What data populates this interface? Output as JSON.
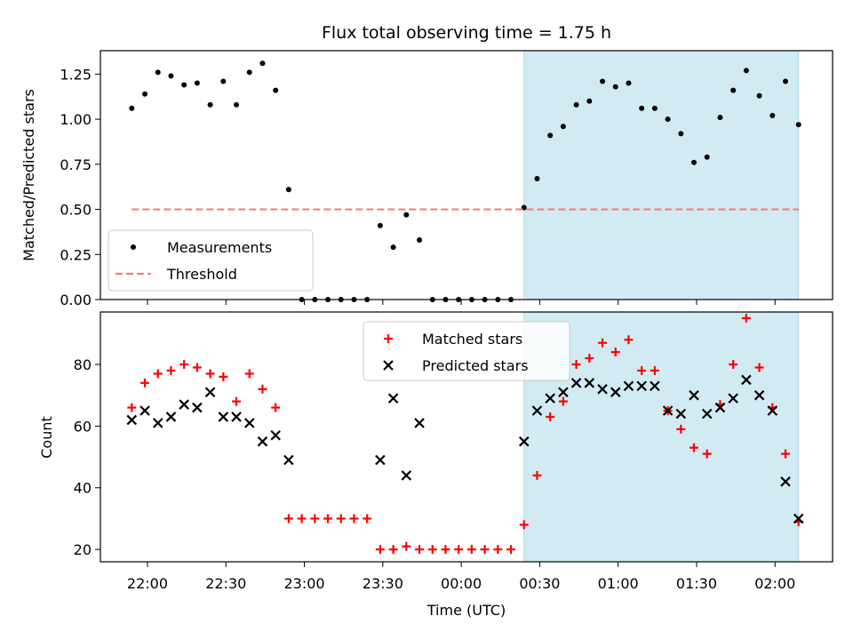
{
  "chart_data": {
    "title": "Flux total observing time = 1.75 h",
    "xlabel": "Time (UTC)",
    "x_ticks": [
      "22:00",
      "22:30",
      "23:00",
      "23:30",
      "00:00",
      "00:30",
      "01:00",
      "01:30",
      "02:00"
    ],
    "highlight_region": {
      "from": "00:24",
      "to": "02:09",
      "color": "#add8e6"
    },
    "top": {
      "type": "scatter",
      "ylabel": "Matched/Predicted stars",
      "ylim": [
        0,
        1.38
      ],
      "yticks": [
        "0.00",
        "0.25",
        "0.50",
        "0.75",
        "1.00",
        "1.25"
      ],
      "legend_position": "lower-left",
      "series": [
        {
          "name": "Measurements",
          "color": "#000000",
          "x": [
            "21:54",
            "21:59",
            "22:04",
            "22:09",
            "22:14",
            "22:19",
            "22:24",
            "22:29",
            "22:34",
            "22:39",
            "22:44",
            "22:49",
            "22:54",
            "22:59",
            "23:04",
            "23:09",
            "23:14",
            "23:19",
            "23:24",
            "23:29",
            "23:34",
            "23:39",
            "23:44",
            "23:49",
            "23:54",
            "23:59",
            "00:04",
            "00:09",
            "00:14",
            "00:19",
            "00:24",
            "00:29",
            "00:34",
            "00:39",
            "00:44",
            "00:49",
            "00:54",
            "00:59",
            "01:04",
            "01:09",
            "01:14",
            "01:19",
            "01:24",
            "01:29",
            "01:34",
            "01:39",
            "01:44",
            "01:49",
            "01:54",
            "01:59",
            "02:04",
            "02:09"
          ],
          "y": [
            1.06,
            1.14,
            1.26,
            1.24,
            1.19,
            1.2,
            1.08,
            1.21,
            1.08,
            1.26,
            1.31,
            1.16,
            0.61,
            0.0,
            0.0,
            0.0,
            0.0,
            0.0,
            0.0,
            0.41,
            0.29,
            0.47,
            0.33,
            0.0,
            0.0,
            0.0,
            0.0,
            0.0,
            0.0,
            0.0,
            0.51,
            0.67,
            0.91,
            0.96,
            1.08,
            1.1,
            1.21,
            1.18,
            1.2,
            1.06,
            1.06,
            1.0,
            0.92,
            0.76,
            0.79,
            1.01,
            1.16,
            1.27,
            1.13,
            1.02,
            1.21,
            0.97
          ]
        },
        {
          "name": "Threshold",
          "color": "#f08080",
          "style": "dashed",
          "x": [
            "21:54",
            "02:09"
          ],
          "y": [
            0.5,
            0.5
          ]
        }
      ]
    },
    "bottom": {
      "type": "scatter",
      "ylabel": "Count",
      "ylim": [
        16,
        97
      ],
      "yticks": [
        "20",
        "40",
        "60",
        "80"
      ],
      "legend_position": "top-center",
      "series": [
        {
          "name": "Matched stars",
          "marker": "plus",
          "color": "#ff0000",
          "x": [
            "21:54",
            "21:59",
            "22:04",
            "22:09",
            "22:14",
            "22:19",
            "22:24",
            "22:29",
            "22:34",
            "22:39",
            "22:44",
            "22:49",
            "22:54",
            "22:59",
            "23:04",
            "23:09",
            "23:14",
            "23:19",
            "23:24",
            "23:29",
            "23:34",
            "23:39",
            "23:44",
            "23:49",
            "23:54",
            "23:59",
            "00:04",
            "00:09",
            "00:14",
            "00:19",
            "00:24",
            "00:29",
            "00:34",
            "00:39",
            "00:44",
            "00:49",
            "00:54",
            "00:59",
            "01:04",
            "01:09",
            "01:14",
            "01:19",
            "01:24",
            "01:29",
            "01:34",
            "01:39",
            "01:44",
            "01:49",
            "01:54",
            "01:59",
            "02:04",
            "02:09"
          ],
          "y": [
            66,
            74,
            77,
            78,
            80,
            79,
            77,
            76,
            68,
            77,
            72,
            66,
            30,
            30,
            30,
            30,
            30,
            30,
            30,
            20,
            20,
            21,
            20,
            20,
            20,
            20,
            20,
            20,
            20,
            20,
            28,
            44,
            63,
            68,
            80,
            82,
            87,
            84,
            88,
            78,
            78,
            65,
            59,
            53,
            51,
            67,
            80,
            95,
            79,
            66,
            51,
            29
          ]
        },
        {
          "name": "Predicted stars",
          "marker": "x",
          "color": "#000000",
          "x": [
            "21:54",
            "21:59",
            "22:04",
            "22:09",
            "22:14",
            "22:19",
            "22:24",
            "22:29",
            "22:34",
            "22:39",
            "22:44",
            "22:49",
            "22:54",
            "23:29",
            "23:34",
            "23:39",
            "23:44",
            "00:24",
            "00:29",
            "00:34",
            "00:39",
            "00:44",
            "00:49",
            "00:54",
            "00:59",
            "01:04",
            "01:09",
            "01:14",
            "01:19",
            "01:24",
            "01:29",
            "01:34",
            "01:39",
            "01:44",
            "01:49",
            "01:54",
            "01:59",
            "02:04",
            "02:09"
          ],
          "y": [
            62,
            65,
            61,
            63,
            67,
            66,
            71,
            63,
            63,
            61,
            55,
            57,
            49,
            49,
            69,
            44,
            61,
            55,
            65,
            69,
            71,
            74,
            74,
            72,
            71,
            73,
            73,
            73,
            65,
            64,
            70,
            64,
            66,
            69,
            75,
            70,
            65,
            42,
            30
          ]
        }
      ]
    }
  }
}
